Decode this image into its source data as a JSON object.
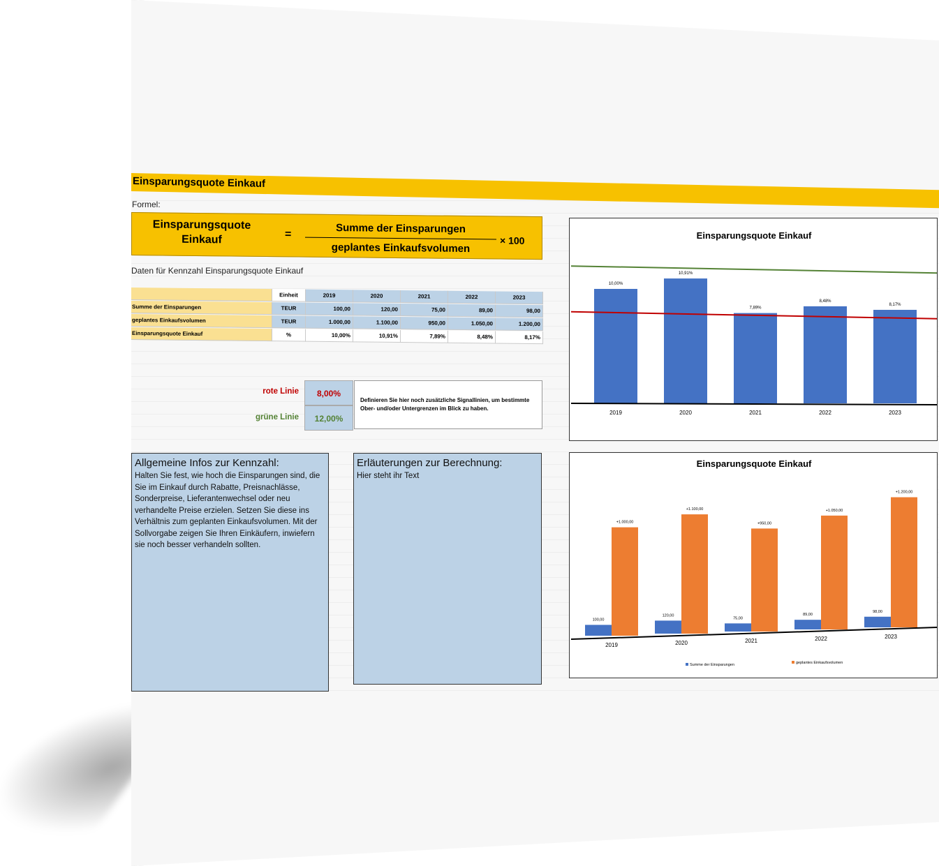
{
  "header": {
    "title": "Einsparungsquote Einkauf",
    "formel_label": "Formel:"
  },
  "formula": {
    "lhs": "Einsparungsquote Einkauf",
    "equals": "=",
    "numerator": "Summe der Einsparungen",
    "denominator": "geplantes Einkaufsvolumen",
    "multiplier": "× 100"
  },
  "data_table": {
    "caption": "Daten für Kennzahl Einsparungsquote Einkauf",
    "unit_header": "Einheit",
    "years": [
      "2019",
      "2020",
      "2021",
      "2022",
      "2023"
    ],
    "rows": [
      {
        "label": "Summe der Einsparungen",
        "unit": "TEUR",
        "values": [
          "100,00",
          "120,00",
          "75,00",
          "89,00",
          "98,00"
        ]
      },
      {
        "label": "geplantes Einkaufsvolumen",
        "unit": "TEUR",
        "values": [
          "1.000,00",
          "1.100,00",
          "950,00",
          "1.050,00",
          "1.200,00"
        ]
      },
      {
        "label": "Einsparungsquote Einkauf",
        "unit": "%",
        "values": [
          "10,00%",
          "10,91%",
          "7,89%",
          "8,48%",
          "8,17%"
        ]
      }
    ]
  },
  "signal_lines": {
    "red_label": "rote Linie",
    "red_value": "8,00%",
    "green_label": "grüne Linie",
    "green_value": "12,00%",
    "note": "Definieren Sie hier noch zusätzliche Signallinien, um bestimmte Ober- und/oder Untergrenzen im Blick zu haben.",
    "red_color": "#c00000",
    "green_color": "#548235"
  },
  "info_general": {
    "heading": "Allgemeine Infos zur Kennzahl:",
    "text": "Halten Sie fest, wie hoch die Einsparungen sind, die Sie im Einkauf durch Rabatte, Preisnachlässe, Sonderpreise, Lieferantenwechsel oder neu verhandelte Preise erzielen. Setzen Sie diese ins Verhältnis zum geplanten Einkaufsvolumen. Mit der Sollvorgabe zeigen Sie Ihren Einkäufern, inwiefern sie noch besser verhandeln sollten."
  },
  "info_calc": {
    "heading": "Erläuterungen zur Berechnung:",
    "text": "Hier steht ihr Text"
  },
  "chart_data": [
    {
      "type": "bar",
      "title": "Einsparungsquote Einkauf",
      "categories": [
        "2019",
        "2020",
        "2021",
        "2022",
        "2023"
      ],
      "values": [
        10.0,
        10.91,
        7.89,
        8.48,
        8.17
      ],
      "labels": [
        "10,00%",
        "10,91%",
        "7,89%",
        "8,48%",
        "8,17%"
      ],
      "ylim": [
        0,
        12.5
      ],
      "reference_lines": [
        {
          "value": 12.0,
          "color": "#548235"
        },
        {
          "value": 8.0,
          "color": "#c00000"
        }
      ],
      "bar_color": "#4472c4"
    },
    {
      "type": "bar",
      "title": "Einsparungsquote Einkauf",
      "categories": [
        "2019",
        "2020",
        "2021",
        "2022",
        "2023"
      ],
      "series": [
        {
          "name": "Summe der Einsparungen",
          "values": [
            100,
            120,
            75,
            89,
            98
          ],
          "labels": [
            "100,00",
            "120,00",
            "75,00",
            "89,00",
            "98,00"
          ],
          "color": "#4472c4"
        },
        {
          "name": "geplantes Einkaufsvolumen",
          "values": [
            1000,
            1100,
            950,
            1050,
            1200
          ],
          "labels": [
            "+1.000,00",
            "+1.100,00",
            "+950,00",
            "+1.050,00",
            "+1.200,00"
          ],
          "color": "#ed7d31"
        }
      ],
      "ylim": [
        0,
        1300
      ],
      "legend": "bottom"
    }
  ]
}
